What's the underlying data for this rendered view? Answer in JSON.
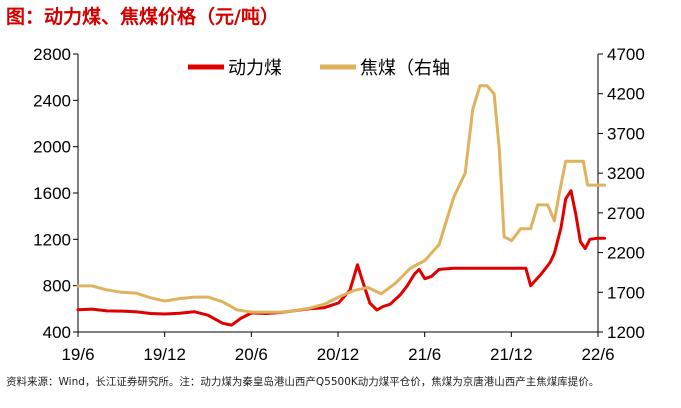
{
  "title": "图：动力煤、焦煤价格（元/吨）",
  "source_note": "资料来源：Wind，长江证券研究所。注：动力煤为秦皇岛港山西产Q5500K动力煤平仓价，焦煤为京唐港山西产主焦煤库提价。",
  "colors": {
    "title": "#d40000",
    "coal": "#e00000",
    "coking": "#e0b25e",
    "axis": "#000000"
  },
  "chart_data": {
    "type": "line",
    "title": "图：动力煤、焦煤价格（元/吨）",
    "x_ticks": [
      "19/6",
      "19/12",
      "20/6",
      "20/12",
      "21/6",
      "21/12",
      "22/6"
    ],
    "x_range": [
      "2019-06",
      "2022-06"
    ],
    "y_left": {
      "min": 400,
      "max": 2800,
      "ticks": [
        400,
        800,
        1200,
        1600,
        2000,
        2400,
        2800
      ]
    },
    "y_right": {
      "min": 1200,
      "max": 4700,
      "ticks": [
        1200,
        1700,
        2200,
        2700,
        3200,
        3700,
        4200,
        4700
      ]
    },
    "grid": false,
    "legend_position": "top-center",
    "series": [
      {
        "name": "动力煤",
        "axis": "left",
        "color": "#e00000",
        "points": [
          [
            "2019-06-01",
            592
          ],
          [
            "2019-07-01",
            598
          ],
          [
            "2019-08-01",
            582
          ],
          [
            "2019-09-01",
            580
          ],
          [
            "2019-10-01",
            575
          ],
          [
            "2019-11-01",
            560
          ],
          [
            "2019-12-01",
            555
          ],
          [
            "2020-01-01",
            562
          ],
          [
            "2020-02-01",
            575
          ],
          [
            "2020-03-01",
            545
          ],
          [
            "2020-04-01",
            475
          ],
          [
            "2020-04-20",
            460
          ],
          [
            "2020-05-10",
            520
          ],
          [
            "2020-06-01",
            565
          ],
          [
            "2020-07-01",
            560
          ],
          [
            "2020-08-01",
            568
          ],
          [
            "2020-09-01",
            585
          ],
          [
            "2020-10-01",
            600
          ],
          [
            "2020-11-01",
            610
          ],
          [
            "2020-12-01",
            650
          ],
          [
            "2020-12-25",
            760
          ],
          [
            "2021-01-10",
            980
          ],
          [
            "2021-01-20",
            850
          ],
          [
            "2021-02-05",
            650
          ],
          [
            "2021-02-20",
            590
          ],
          [
            "2021-03-05",
            620
          ],
          [
            "2021-03-20",
            640
          ],
          [
            "2021-04-10",
            720
          ],
          [
            "2021-04-25",
            800
          ],
          [
            "2021-05-10",
            900
          ],
          [
            "2021-05-20",
            940
          ],
          [
            "2021-06-01",
            860
          ],
          [
            "2021-06-15",
            880
          ],
          [
            "2021-07-01",
            940
          ],
          [
            "2021-08-01",
            950
          ],
          [
            "2021-09-01",
            950
          ],
          [
            "2021-10-01",
            950
          ],
          [
            "2021-11-01",
            950
          ],
          [
            "2021-12-01",
            950
          ],
          [
            "2021-12-31",
            950
          ],
          [
            "2022-01-10",
            800
          ],
          [
            "2022-02-01",
            900
          ],
          [
            "2022-02-20",
            1000
          ],
          [
            "2022-03-01",
            1080
          ],
          [
            "2022-03-15",
            1300
          ],
          [
            "2022-03-25",
            1550
          ],
          [
            "2022-04-05",
            1620
          ],
          [
            "2022-04-15",
            1420
          ],
          [
            "2022-04-25",
            1180
          ],
          [
            "2022-05-05",
            1120
          ],
          [
            "2022-05-15",
            1200
          ],
          [
            "2022-06-01",
            1210
          ],
          [
            "2022-06-15",
            1210
          ]
        ]
      },
      {
        "name": "焦煤（右轴",
        "axis": "right",
        "color": "#e0b25e",
        "points": [
          [
            "2019-06-01",
            1780
          ],
          [
            "2019-07-01",
            1780
          ],
          [
            "2019-08-01",
            1730
          ],
          [
            "2019-09-01",
            1700
          ],
          [
            "2019-10-01",
            1690
          ],
          [
            "2019-11-01",
            1630
          ],
          [
            "2019-12-01",
            1590
          ],
          [
            "2020-01-01",
            1620
          ],
          [
            "2020-02-01",
            1640
          ],
          [
            "2020-03-01",
            1640
          ],
          [
            "2020-04-01",
            1580
          ],
          [
            "2020-05-01",
            1480
          ],
          [
            "2020-06-01",
            1450
          ],
          [
            "2020-07-01",
            1450
          ],
          [
            "2020-08-01",
            1450
          ],
          [
            "2020-09-01",
            1470
          ],
          [
            "2020-10-01",
            1500
          ],
          [
            "2020-11-01",
            1550
          ],
          [
            "2020-12-01",
            1640
          ],
          [
            "2021-01-01",
            1720
          ],
          [
            "2021-02-01",
            1760
          ],
          [
            "2021-03-01",
            1680
          ],
          [
            "2021-04-01",
            1820
          ],
          [
            "2021-05-01",
            2000
          ],
          [
            "2021-06-01",
            2100
          ],
          [
            "2021-07-01",
            2300
          ],
          [
            "2021-08-01",
            2900
          ],
          [
            "2021-08-25",
            3200
          ],
          [
            "2021-09-10",
            4000
          ],
          [
            "2021-09-25",
            4300
          ],
          [
            "2021-10-10",
            4300
          ],
          [
            "2021-10-25",
            4200
          ],
          [
            "2021-11-05",
            3500
          ],
          [
            "2021-11-15",
            2400
          ],
          [
            "2021-12-01",
            2350
          ],
          [
            "2021-12-20",
            2500
          ],
          [
            "2022-01-10",
            2500
          ],
          [
            "2022-01-25",
            2800
          ],
          [
            "2022-02-15",
            2800
          ],
          [
            "2022-03-01",
            2600
          ],
          [
            "2022-03-10",
            2900
          ],
          [
            "2022-03-25",
            3350
          ],
          [
            "2022-04-15",
            3350
          ],
          [
            "2022-05-01",
            3350
          ],
          [
            "2022-05-10",
            3050
          ],
          [
            "2022-06-15",
            3050
          ]
        ]
      }
    ]
  }
}
